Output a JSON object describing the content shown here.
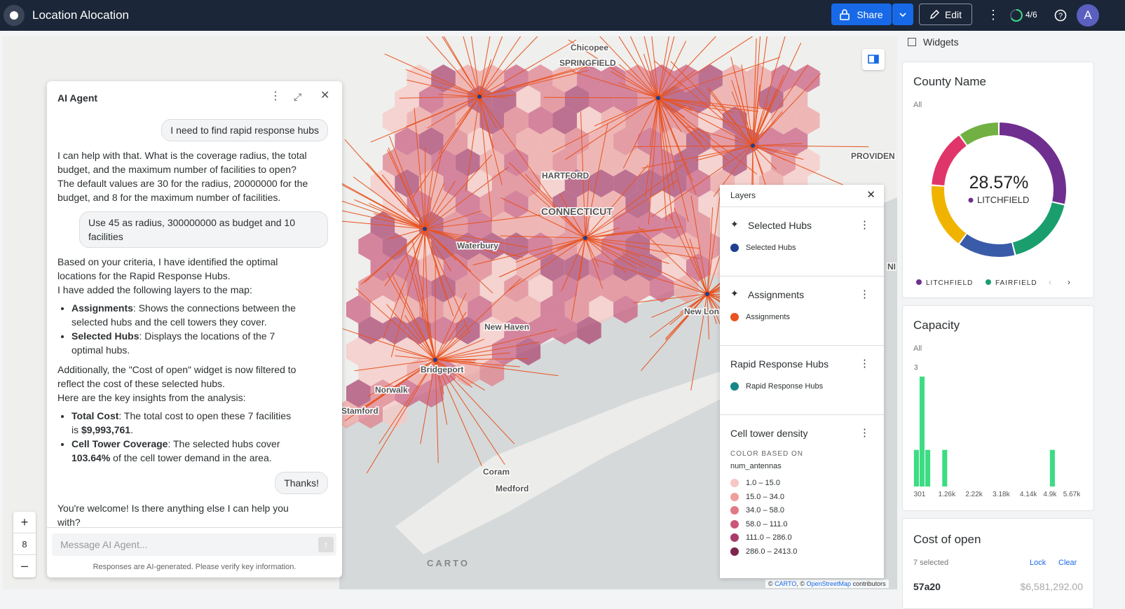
{
  "header": {
    "title": "Location Alocation",
    "share": "Share",
    "edit": "Edit",
    "progress": "4/6",
    "avatar": "A"
  },
  "map": {
    "labels": [
      "Chicopee",
      "SPRINGFIELD",
      "HARTFORD",
      "CONNECTICUT",
      "Waterbury",
      "New Haven",
      "Bridgeport",
      "Norwalk",
      "Stamford",
      "New Lon",
      "PROVIDEN",
      "NI",
      "Coram",
      "Medford"
    ],
    "zoom": "8",
    "attribution": {
      "prefix": "©",
      "carto": "CARTO",
      "sep": ", ©",
      "osm": "OpenStreetMap",
      "suffix": "contributors"
    },
    "brand": "CARTO"
  },
  "chat": {
    "title": "AI Agent",
    "messages": [
      {
        "user": "I need to find rapid response hubs"
      },
      {
        "agent": [
          {
            "p": [
              "I can help with that. What is the coverage radius, the total budget, and the maximum number of facilities to open?"
            ]
          },
          {
            "p": [
              "The default values are 30 for the radius, 20000000 for the budget, and 8 for the maximum number of facilities."
            ]
          }
        ]
      },
      {
        "user": "Use 45 as radius, 300000000 as budget and 10 facilities"
      },
      {
        "agent": [
          {
            "p": [
              "Based on your criteria, I have identified the optimal locations for the Rapid Response Hubs."
            ]
          },
          {
            "p": [
              "I have added the following layers to the map:"
            ]
          },
          {
            "ul": [
              [
                {
                  "b": "Assignments"
                },
                ": Shows the connections between the selected hubs and the cell towers they cover."
              ],
              [
                {
                  "b": "Selected Hubs"
                },
                ": Displays the locations of the 7 optimal hubs."
              ]
            ]
          },
          {
            "p": [
              "Additionally, the \"Cost of open\" widget is now filtered to reflect the cost of these selected hubs."
            ]
          },
          {
            "p": [
              "Here are the key insights from the analysis:"
            ]
          },
          {
            "ul": [
              [
                {
                  "b": "Total Cost"
                },
                ": The total cost to open these 7 facilities is ",
                {
                  "b": "$9,993,761"
                },
                "."
              ],
              [
                {
                  "b": "Cell Tower Coverage"
                },
                ": The selected hubs cover ",
                {
                  "b": "103.64%"
                },
                " of the cell tower demand in the area."
              ]
            ]
          }
        ]
      },
      {
        "user": "Thanks!"
      },
      {
        "agent": [
          {
            "p": [
              "You're welcome! Is there anything else I can help you with?"
            ]
          }
        ]
      }
    ],
    "placeholder": "Message AI Agent...",
    "disclaimer": "Responses are AI-generated. Please verify key information."
  },
  "layers": {
    "title": "Layers",
    "groups": [
      {
        "title": "Selected Hubs",
        "items": [
          {
            "name": "Selected Hubs",
            "color": "#1f3f8f"
          }
        ]
      },
      {
        "title": "Assignments",
        "items": [
          {
            "name": "Assignments",
            "color": "#e8531f"
          }
        ]
      },
      {
        "title": "Rapid Response Hubs",
        "items": [
          {
            "name": "Rapid Response Hubs",
            "color": "#16868a"
          }
        ]
      }
    ],
    "density": {
      "title": "Cell tower density",
      "based_on": "COLOR BASED ON",
      "field": "num_antennas",
      "ranges": [
        {
          "name": "1.0 – 15.0",
          "color": "#f6c7c3"
        },
        {
          "name": "15.0 – 34.0",
          "color": "#ee9f9c"
        },
        {
          "name": "34.0 – 58.0",
          "color": "#e07a86"
        },
        {
          "name": "58.0 – 111.0",
          "color": "#c9577a"
        },
        {
          "name": "111.0 – 286.0",
          "color": "#a83c6a"
        },
        {
          "name": "286.0 – 2413.0",
          "color": "#7e2550"
        }
      ]
    }
  },
  "widgets": {
    "title": "Widgets",
    "county": {
      "title": "County Name",
      "filter": "All",
      "center_value": "28.57%",
      "center_label": "LITCHFIELD",
      "categories": [
        "LITCHFIELD",
        "FAIRFIELD",
        null,
        null,
        null,
        null
      ],
      "values": [
        28.57,
        17.5,
        14,
        16,
        14,
        9.93
      ],
      "colors": [
        "#6f2f8f",
        "#1a9e6e",
        "#3a5ba8",
        "#f0b400",
        "#e0356a",
        "#72b043"
      ]
    },
    "capacity": {
      "type": "histogram",
      "title": "Capacity",
      "filter": "All",
      "bins": [
        100,
        300,
        500,
        700,
        900,
        1100,
        1300,
        1500,
        1700,
        1900,
        2100,
        2300,
        2500,
        2700,
        2900,
        3100,
        3300,
        3500,
        3700,
        3900,
        4100,
        4300,
        4500,
        4700,
        4900,
        5100
      ],
      "values": [
        1,
        3,
        1,
        0,
        0,
        1,
        0,
        0,
        0,
        0,
        0,
        0,
        0,
        0,
        0,
        0,
        0,
        0,
        0,
        0,
        0,
        0,
        0,
        0,
        1
      ],
      "color": "#3ddc84",
      "xlim": [
        301,
        5670
      ],
      "xticks": [
        301,
        {
          "value": 1260,
          "label": "1.26k"
        },
        {
          "value": 2220,
          "label": "2.22k"
        },
        {
          "value": 3180,
          "label": "3.18k"
        },
        {
          "value": 4140,
          "label": "4.14k"
        },
        {
          "value": 4900,
          "label": "4.9k"
        },
        {
          "value": 5670,
          "label": "5.67k"
        }
      ],
      "ylim": [
        0,
        3
      ],
      "yticks": [
        3
      ]
    },
    "cost": {
      "title": "Cost of open",
      "selected": "7 selected",
      "lock": "Lock",
      "clear": "Clear",
      "rows": [
        {
          "name": "57a20",
          "value": "$6,581,292.00"
        }
      ]
    }
  }
}
